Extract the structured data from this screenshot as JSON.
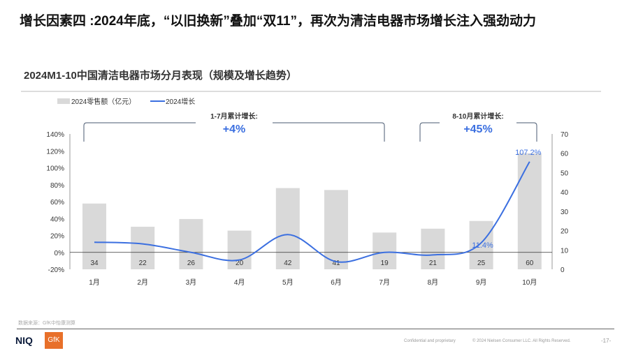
{
  "title": "增长因素四 :2024年底，“以旧换新”叠加“双11”，再次为清洁电器市场增长注入强劲动力",
  "chart_data": {
    "type": "bar+line",
    "title": "2024M1-10中国清洁电器市场分月表现（规模及增长趋势）",
    "categories": [
      "1月",
      "2月",
      "3月",
      "4月",
      "5月",
      "6月",
      "7月",
      "8月",
      "9月",
      "10月"
    ],
    "series": [
      {
        "name": "2024零售额（亿元）",
        "type": "bar",
        "axis": "right",
        "values": [
          34,
          22,
          26,
          20,
          42,
          41,
          19,
          21,
          25,
          60
        ],
        "color": "#d9d9d9"
      },
      {
        "name": "2024增长",
        "type": "line",
        "axis": "left",
        "values": [
          12,
          10,
          0,
          -9,
          21,
          -11,
          0,
          -3,
          11.4,
          107.2
        ],
        "color": "#3b6fe0",
        "labels": {
          "8": "11.4%",
          "9": "107.2%"
        }
      }
    ],
    "left_axis": {
      "ylim": [
        -20,
        140
      ],
      "ticks": [
        "-20%",
        "0%",
        "20%",
        "40%",
        "60%",
        "80%",
        "100%",
        "120%",
        "140%"
      ]
    },
    "right_axis": {
      "ylim": [
        0,
        70
      ],
      "ticks": [
        "0",
        "10",
        "20",
        "30",
        "40",
        "50",
        "60",
        "70"
      ]
    },
    "legend": "top-left",
    "annotations": [
      {
        "label": "1-7月累计增长:",
        "value": "+4%"
      },
      {
        "label": "8-10月累计增长:",
        "value": "+45%"
      }
    ]
  },
  "footer": {
    "source": "数据来源：GfK中怡康测算",
    "confidential": "Confidential and proprietary",
    "copyright": "© 2024 Nielsen Consumer LLC. All Rights Reserved.",
    "page": "-17-",
    "logo1": "NIQ",
    "logo2": "GfK"
  }
}
